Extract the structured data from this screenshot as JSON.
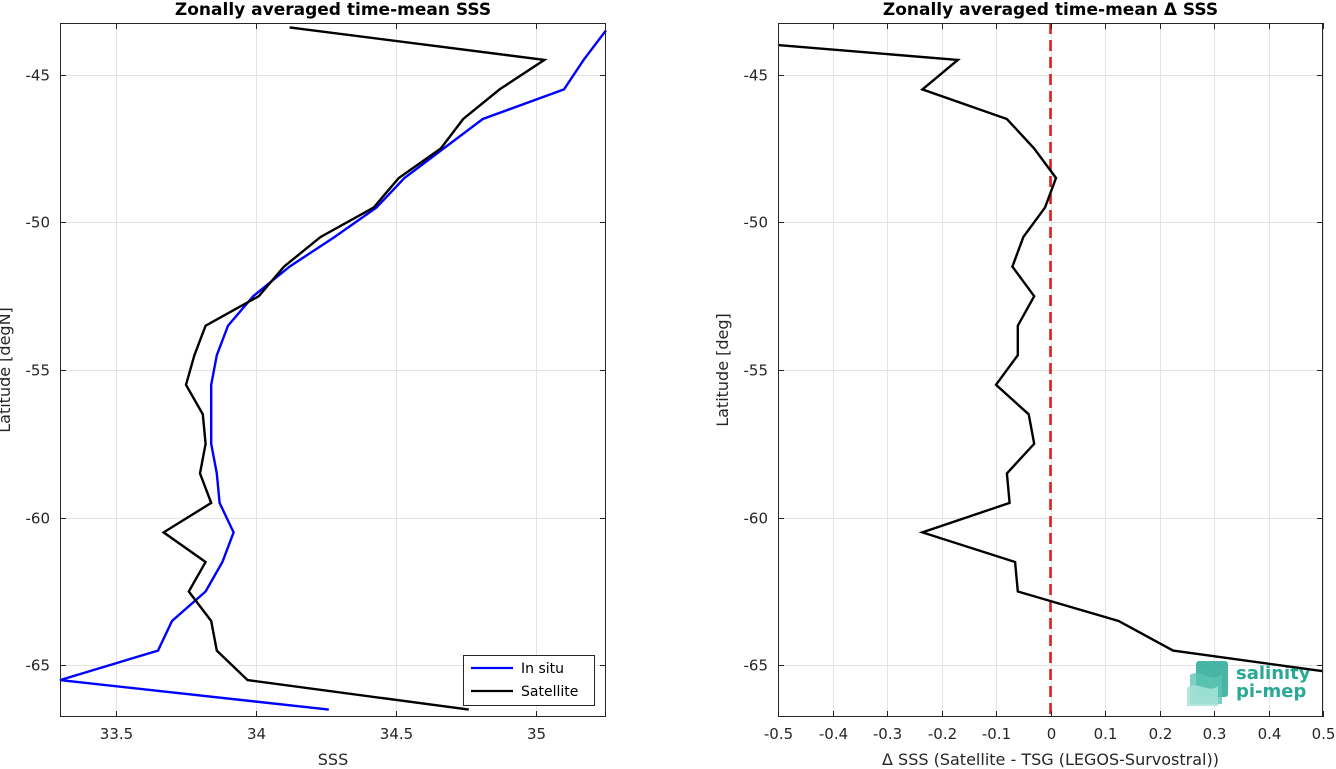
{
  "chart_data": [
    {
      "type": "line",
      "title": "Zonally averaged time-mean SSS",
      "xlabel": "SSS",
      "ylabel": "Latitude [degN]",
      "xlim": [
        33.3,
        35.25
      ],
      "ylim": [
        -66.75,
        -43.25
      ],
      "xticks": [
        33.5,
        34,
        34.5,
        35
      ],
      "xtick_labels": [
        "33.5",
        "34",
        "34.5",
        "35"
      ],
      "yticks": [
        -65,
        -60,
        -55,
        -50,
        -45
      ],
      "ytick_labels": [
        "-65",
        "-60",
        "-55",
        "-50",
        "-45"
      ],
      "grid": true,
      "legend_position": "bottom-right",
      "series": [
        {
          "name": "In situ",
          "color": "#0000ff",
          "points": [
            [
              35.25,
              -43.5
            ],
            [
              35.17,
              -44.5
            ],
            [
              35.1,
              -45.5
            ],
            [
              34.81,
              -46.5
            ],
            [
              34.67,
              -47.5
            ],
            [
              34.53,
              -48.5
            ],
            [
              34.43,
              -49.5
            ],
            [
              34.28,
              -50.5
            ],
            [
              34.12,
              -51.5
            ],
            [
              33.99,
              -52.5
            ],
            [
              33.9,
              -53.5
            ],
            [
              33.86,
              -54.5
            ],
            [
              33.84,
              -55.5
            ],
            [
              33.84,
              -56.5
            ],
            [
              33.84,
              -57.5
            ],
            [
              33.86,
              -58.5
            ],
            [
              33.87,
              -59.5
            ],
            [
              33.92,
              -60.5
            ],
            [
              33.88,
              -61.5
            ],
            [
              33.82,
              -62.5
            ],
            [
              33.7,
              -63.5
            ],
            [
              33.65,
              -64.5
            ],
            [
              33.3,
              -65.5
            ],
            [
              34.26,
              -66.5
            ]
          ]
        },
        {
          "name": "Satellite",
          "color": "#000000",
          "points": [
            [
              34.12,
              -43.4
            ],
            [
              35.03,
              -44.5
            ],
            [
              34.87,
              -45.5
            ],
            [
              34.74,
              -46.5
            ],
            [
              34.66,
              -47.5
            ],
            [
              34.51,
              -48.5
            ],
            [
              34.42,
              -49.5
            ],
            [
              34.23,
              -50.5
            ],
            [
              34.1,
              -51.5
            ],
            [
              34.01,
              -52.5
            ],
            [
              33.82,
              -53.5
            ],
            [
              33.78,
              -54.5
            ],
            [
              33.75,
              -55.5
            ],
            [
              33.81,
              -56.5
            ],
            [
              33.82,
              -57.5
            ],
            [
              33.8,
              -58.5
            ],
            [
              33.84,
              -59.5
            ],
            [
              33.67,
              -60.5
            ],
            [
              33.82,
              -61.5
            ],
            [
              33.76,
              -62.5
            ],
            [
              33.84,
              -63.5
            ],
            [
              33.86,
              -64.5
            ],
            [
              33.97,
              -65.5
            ],
            [
              34.76,
              -66.5
            ]
          ]
        }
      ]
    },
    {
      "type": "line",
      "title": "Zonally averaged time-mean Δ SSS",
      "xlabel": "Δ SSS (Satellite - TSG (LEGOS-Survostral))",
      "ylabel": "Latitude [deg]",
      "xlim": [
        -0.5,
        0.5
      ],
      "ylim": [
        -66.75,
        -43.25
      ],
      "xticks": [
        -0.5,
        -0.4,
        -0.3,
        -0.2,
        -0.1,
        0,
        0.1,
        0.2,
        0.3,
        0.4,
        0.5
      ],
      "xtick_labels": [
        "-0.5",
        "-0.4",
        "-0.3",
        "-0.2",
        "-0.1",
        "0",
        "0.1",
        "0.2",
        "0.3",
        "0.4",
        "0.5"
      ],
      "yticks": [
        -65,
        -60,
        -55,
        -50,
        -45
      ],
      "ytick_labels": [
        "-65",
        "-60",
        "-55",
        "-50",
        "-45"
      ],
      "grid": true,
      "reference_line": {
        "x": 0,
        "color": "#e0201b",
        "style": "dashed"
      },
      "series": [
        {
          "color": "#000000",
          "points": [
            [
              -0.5,
              -44.0
            ],
            [
              -0.17,
              -44.5
            ],
            [
              -0.235,
              -45.5
            ],
            [
              -0.08,
              -46.5
            ],
            [
              -0.03,
              -47.5
            ],
            [
              0.01,
              -48.5
            ],
            [
              -0.01,
              -49.5
            ],
            [
              -0.05,
              -50.5
            ],
            [
              -0.07,
              -51.5
            ],
            [
              -0.03,
              -52.5
            ],
            [
              -0.06,
              -53.5
            ],
            [
              -0.06,
              -54.5
            ],
            [
              -0.1,
              -55.5
            ],
            [
              -0.04,
              -56.5
            ],
            [
              -0.03,
              -57.5
            ],
            [
              -0.08,
              -58.5
            ],
            [
              -0.075,
              -59.5
            ],
            [
              -0.235,
              -60.5
            ],
            [
              -0.065,
              -61.5
            ],
            [
              -0.06,
              -62.5
            ],
            [
              0.125,
              -63.5
            ],
            [
              0.225,
              -64.5
            ],
            [
              0.5,
              -65.2
            ]
          ]
        }
      ]
    }
  ],
  "watermark": {
    "line1": "salinity",
    "line2": "pi-mep",
    "color": "#29a894"
  }
}
